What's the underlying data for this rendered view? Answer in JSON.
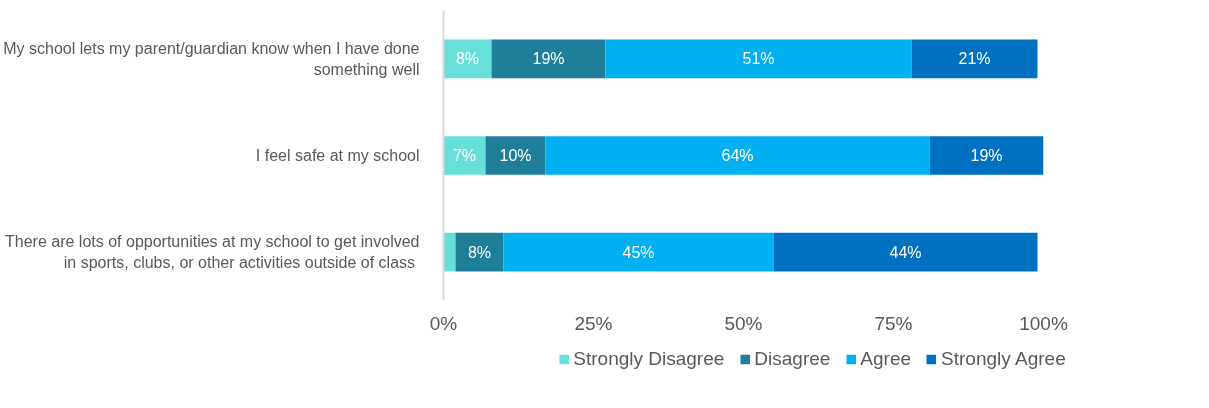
{
  "chart_data": {
    "type": "bar",
    "orientation": "horizontal",
    "stacked": true,
    "categories": [
      "My school lets my parent/guardian know when I have done\nsomething well",
      "I feel safe at my school",
      "There are lots of opportunities at my school to get involved\nin sports,  clubs, or other activities outside of class"
    ],
    "series": [
      {
        "name": "Strongly Disagree",
        "color": "#66e0d8",
        "values": [
          8,
          7,
          2
        ],
        "value_labels": [
          "8%",
          "7%",
          null
        ]
      },
      {
        "name": "Disagree",
        "color": "#1f7f9a",
        "values": [
          19,
          10,
          8
        ],
        "value_labels": [
          "19%",
          "10%",
          "8%"
        ]
      },
      {
        "name": "Agree",
        "color": "#00b0f0",
        "values": [
          51,
          64,
          45
        ],
        "value_labels": [
          "51%",
          "64%",
          "45%"
        ]
      },
      {
        "name": "Strongly Agree",
        "color": "#0070c0",
        "values": [
          21,
          19,
          44
        ],
        "value_labels": [
          "21%",
          "19%",
          "44%"
        ]
      }
    ],
    "xlim": [
      0,
      100
    ],
    "xticks": [
      {
        "value": 0,
        "label": "0%"
      },
      {
        "value": 25,
        "label": "25%"
      },
      {
        "value": 50,
        "label": "50%"
      },
      {
        "value": 75,
        "label": "75%"
      },
      {
        "value": 100,
        "label": "100%"
      }
    ],
    "grid": false,
    "legend": "bottom"
  }
}
